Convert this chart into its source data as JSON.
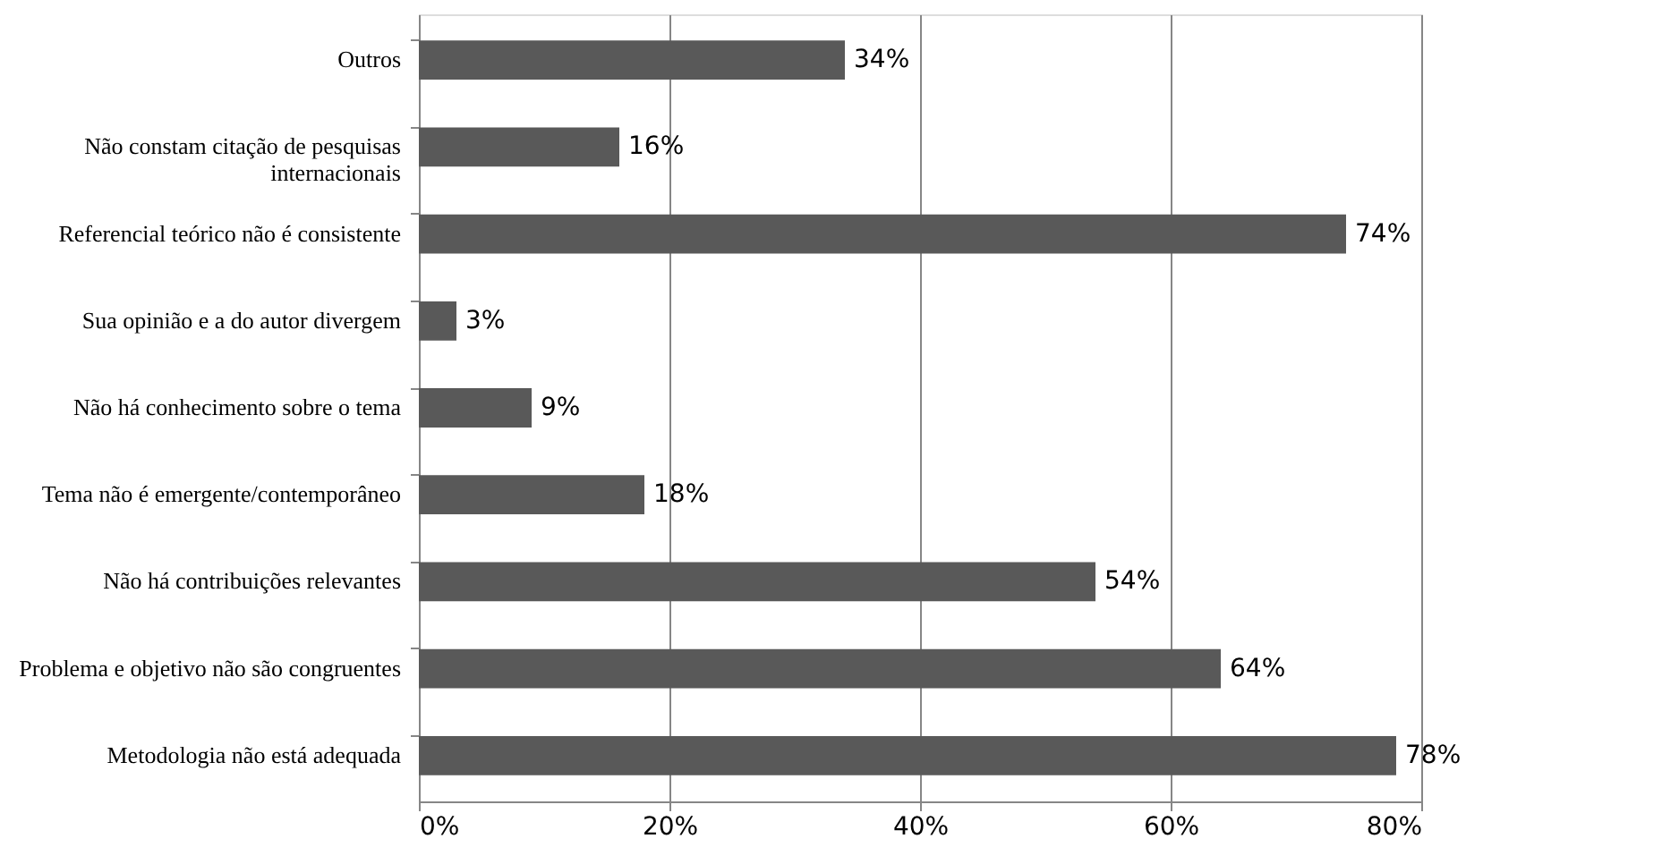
{
  "chart_data": {
    "type": "bar",
    "orientation": "horizontal",
    "categories": [
      "Outros",
      "Não constam citação de pesquisas internacionais",
      "Referencial teórico não é consistente",
      "Sua opinião e a do autor divergem",
      "Não há conhecimento sobre o tema",
      "Tema não é emergente/contemporâneo",
      "Não há contribuições relevantes",
      "Problema e objetivo não são congruentes",
      "Metodologia não está adequada"
    ],
    "values": [
      34,
      16,
      74,
      3,
      9,
      18,
      54,
      64,
      78
    ],
    "value_labels": [
      "34%",
      "16%",
      "74%",
      "3%",
      "9%",
      "18%",
      "54%",
      "64%",
      "78%"
    ],
    "color": "#595959",
    "xlim": [
      0,
      80
    ],
    "xticks": [
      {
        "value": 0,
        "label": "0%"
      },
      {
        "value": 20,
        "label": "20%"
      },
      {
        "value": 40,
        "label": "40%"
      },
      {
        "value": 60,
        "label": "60%"
      },
      {
        "value": 80,
        "label": "80%"
      }
    ],
    "grid": "x"
  }
}
